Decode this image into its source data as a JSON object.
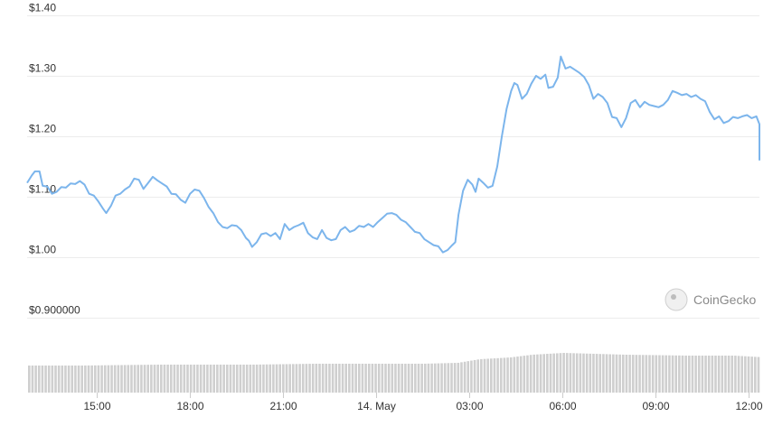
{
  "chart_data": {
    "type": "line",
    "watermark": "CoinGecko",
    "grid": true,
    "legend": "none",
    "colors": {
      "line": "#7cb5ec",
      "volume": "#cfcfcf",
      "grid": "#ececec"
    },
    "ylim": [
      0.88,
      1.4
    ],
    "y_ticks": [
      {
        "value": 1.4,
        "label": "$1.40"
      },
      {
        "value": 1.3,
        "label": "$1.30"
      },
      {
        "value": 1.2,
        "label": "$1.20"
      },
      {
        "value": 1.1,
        "label": "$1.10"
      },
      {
        "value": 1.0,
        "label": "$1.00"
      },
      {
        "value": 0.9,
        "label": "$0.900000"
      }
    ],
    "x_domain_hours": [
      12.75,
      36.35
    ],
    "x_ticks": [
      {
        "hour": 15,
        "label": "15:00"
      },
      {
        "hour": 18,
        "label": "18:00"
      },
      {
        "hour": 21,
        "label": "21:00"
      },
      {
        "hour": 24,
        "label": "14. May"
      },
      {
        "hour": 27,
        "label": "03:00"
      },
      {
        "hour": 30,
        "label": "06:00"
      },
      {
        "hour": 33,
        "label": "09:00"
      },
      {
        "hour": 36,
        "label": "12:00"
      }
    ],
    "price_points": [
      [
        12.75,
        1.123
      ],
      [
        12.9,
        1.135
      ],
      [
        13.0,
        1.142
      ],
      [
        13.15,
        1.142
      ],
      [
        13.25,
        1.118
      ],
      [
        13.4,
        1.117
      ],
      [
        13.55,
        1.105
      ],
      [
        13.7,
        1.108
      ],
      [
        13.85,
        1.116
      ],
      [
        14.0,
        1.115
      ],
      [
        14.15,
        1.122
      ],
      [
        14.3,
        1.121
      ],
      [
        14.45,
        1.126
      ],
      [
        14.6,
        1.12
      ],
      [
        14.75,
        1.105
      ],
      [
        14.9,
        1.102
      ],
      [
        15.05,
        1.092
      ],
      [
        15.2,
        1.08
      ],
      [
        15.3,
        1.073
      ],
      [
        15.45,
        1.085
      ],
      [
        15.6,
        1.102
      ],
      [
        15.75,
        1.105
      ],
      [
        15.9,
        1.112
      ],
      [
        16.05,
        1.117
      ],
      [
        16.2,
        1.13
      ],
      [
        16.35,
        1.128
      ],
      [
        16.5,
        1.113
      ],
      [
        16.65,
        1.123
      ],
      [
        16.8,
        1.133
      ],
      [
        16.95,
        1.127
      ],
      [
        17.1,
        1.122
      ],
      [
        17.25,
        1.117
      ],
      [
        17.4,
        1.105
      ],
      [
        17.55,
        1.104
      ],
      [
        17.7,
        1.095
      ],
      [
        17.85,
        1.09
      ],
      [
        18.0,
        1.105
      ],
      [
        18.15,
        1.112
      ],
      [
        18.3,
        1.11
      ],
      [
        18.45,
        1.098
      ],
      [
        18.6,
        1.083
      ],
      [
        18.75,
        1.073
      ],
      [
        18.9,
        1.058
      ],
      [
        19.05,
        1.05
      ],
      [
        19.2,
        1.048
      ],
      [
        19.35,
        1.053
      ],
      [
        19.5,
        1.052
      ],
      [
        19.65,
        1.045
      ],
      [
        19.8,
        1.032
      ],
      [
        19.9,
        1.027
      ],
      [
        20.0,
        1.017
      ],
      [
        20.15,
        1.025
      ],
      [
        20.3,
        1.038
      ],
      [
        20.45,
        1.04
      ],
      [
        20.6,
        1.035
      ],
      [
        20.75,
        1.04
      ],
      [
        20.9,
        1.03
      ],
      [
        21.05,
        1.055
      ],
      [
        21.2,
        1.045
      ],
      [
        21.35,
        1.05
      ],
      [
        21.5,
        1.053
      ],
      [
        21.65,
        1.057
      ],
      [
        21.8,
        1.04
      ],
      [
        21.95,
        1.033
      ],
      [
        22.1,
        1.03
      ],
      [
        22.25,
        1.045
      ],
      [
        22.4,
        1.032
      ],
      [
        22.55,
        1.028
      ],
      [
        22.7,
        1.03
      ],
      [
        22.85,
        1.045
      ],
      [
        23.0,
        1.05
      ],
      [
        23.15,
        1.042
      ],
      [
        23.3,
        1.045
      ],
      [
        23.45,
        1.052
      ],
      [
        23.6,
        1.05
      ],
      [
        23.75,
        1.055
      ],
      [
        23.9,
        1.05
      ],
      [
        24.05,
        1.058
      ],
      [
        24.2,
        1.065
      ],
      [
        24.35,
        1.072
      ],
      [
        24.5,
        1.073
      ],
      [
        24.65,
        1.07
      ],
      [
        24.8,
        1.062
      ],
      [
        24.95,
        1.058
      ],
      [
        25.1,
        1.05
      ],
      [
        25.25,
        1.042
      ],
      [
        25.4,
        1.04
      ],
      [
        25.55,
        1.03
      ],
      [
        25.7,
        1.025
      ],
      [
        25.85,
        1.02
      ],
      [
        26.0,
        1.018
      ],
      [
        26.15,
        1.008
      ],
      [
        26.3,
        1.012
      ],
      [
        26.45,
        1.02
      ],
      [
        26.55,
        1.025
      ],
      [
        26.65,
        1.07
      ],
      [
        26.8,
        1.11
      ],
      [
        26.95,
        1.128
      ],
      [
        27.1,
        1.12
      ],
      [
        27.2,
        1.108
      ],
      [
        27.3,
        1.13
      ],
      [
        27.45,
        1.123
      ],
      [
        27.6,
        1.115
      ],
      [
        27.75,
        1.118
      ],
      [
        27.9,
        1.15
      ],
      [
        28.05,
        1.2
      ],
      [
        28.2,
        1.245
      ],
      [
        28.35,
        1.275
      ],
      [
        28.45,
        1.288
      ],
      [
        28.55,
        1.285
      ],
      [
        28.7,
        1.262
      ],
      [
        28.85,
        1.27
      ],
      [
        29.0,
        1.287
      ],
      [
        29.15,
        1.3
      ],
      [
        29.3,
        1.295
      ],
      [
        29.45,
        1.302
      ],
      [
        29.55,
        1.28
      ],
      [
        29.7,
        1.282
      ],
      [
        29.85,
        1.297
      ],
      [
        29.95,
        1.332
      ],
      [
        30.1,
        1.312
      ],
      [
        30.25,
        1.315
      ],
      [
        30.4,
        1.31
      ],
      [
        30.55,
        1.305
      ],
      [
        30.7,
        1.298
      ],
      [
        30.85,
        1.285
      ],
      [
        31.0,
        1.262
      ],
      [
        31.15,
        1.27
      ],
      [
        31.3,
        1.265
      ],
      [
        31.45,
        1.255
      ],
      [
        31.6,
        1.232
      ],
      [
        31.75,
        1.23
      ],
      [
        31.9,
        1.215
      ],
      [
        32.05,
        1.23
      ],
      [
        32.2,
        1.255
      ],
      [
        32.35,
        1.26
      ],
      [
        32.5,
        1.248
      ],
      [
        32.65,
        1.257
      ],
      [
        32.8,
        1.252
      ],
      [
        32.95,
        1.25
      ],
      [
        33.1,
        1.248
      ],
      [
        33.25,
        1.252
      ],
      [
        33.4,
        1.26
      ],
      [
        33.55,
        1.275
      ],
      [
        33.7,
        1.272
      ],
      [
        33.85,
        1.268
      ],
      [
        34.0,
        1.27
      ],
      [
        34.15,
        1.265
      ],
      [
        34.3,
        1.268
      ],
      [
        34.45,
        1.262
      ],
      [
        34.6,
        1.258
      ],
      [
        34.75,
        1.24
      ],
      [
        34.9,
        1.228
      ],
      [
        35.05,
        1.233
      ],
      [
        35.2,
        1.222
      ],
      [
        35.35,
        1.225
      ],
      [
        35.5,
        1.232
      ],
      [
        35.65,
        1.23
      ],
      [
        35.8,
        1.233
      ],
      [
        35.95,
        1.235
      ],
      [
        36.1,
        1.23
      ],
      [
        36.25,
        1.233
      ],
      [
        36.4,
        1.22
      ],
      [
        36.55,
        1.198
      ],
      [
        36.7,
        1.19
      ],
      [
        36.85,
        1.185
      ],
      [
        37.0,
        1.17
      ],
      [
        37.15,
        1.163
      ],
      [
        37.3,
        1.162
      ],
      [
        37.45,
        1.16
      ]
    ],
    "volume_levels": [
      [
        12.75,
        0.3
      ],
      [
        14.5,
        0.3
      ],
      [
        17.0,
        0.31
      ],
      [
        18.5,
        0.31
      ],
      [
        20.0,
        0.31
      ],
      [
        22.0,
        0.32
      ],
      [
        24.0,
        0.32
      ],
      [
        25.5,
        0.32
      ],
      [
        26.6,
        0.33
      ],
      [
        27.3,
        0.37
      ],
      [
        28.3,
        0.39
      ],
      [
        29.0,
        0.42
      ],
      [
        30.0,
        0.44
      ],
      [
        31.0,
        0.43
      ],
      [
        32.0,
        0.42
      ],
      [
        34.0,
        0.41
      ],
      [
        35.5,
        0.41
      ],
      [
        36.5,
        0.39
      ],
      [
        37.45,
        0.37
      ]
    ]
  }
}
